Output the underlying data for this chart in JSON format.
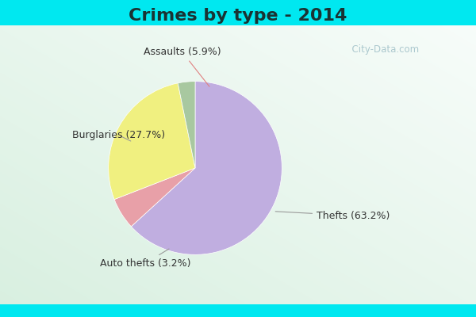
{
  "title": "Crimes by type - 2014",
  "slices": [
    {
      "label": "Thefts (63.2%)",
      "value": 63.2,
      "color": "#c0aee0"
    },
    {
      "label": "Assaults (5.9%)",
      "value": 5.9,
      "color": "#e8a0a8"
    },
    {
      "label": "Burglaries (27.7%)",
      "value": 27.7,
      "color": "#f0f080"
    },
    {
      "label": "Auto thefts (3.2%)",
      "value": 3.2,
      "color": "#a8c8a0"
    }
  ],
  "background_cyan": "#00e8f0",
  "title_fontsize": 16,
  "label_fontsize": 9,
  "startangle": 90,
  "watermark": "  City-Data.com"
}
